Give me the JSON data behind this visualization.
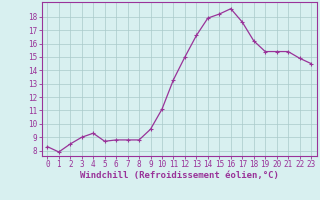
{
  "x": [
    0,
    1,
    2,
    3,
    4,
    5,
    6,
    7,
    8,
    9,
    10,
    11,
    12,
    13,
    14,
    15,
    16,
    17,
    18,
    19,
    20,
    21,
    22,
    23
  ],
  "y": [
    8.3,
    7.9,
    8.5,
    9.0,
    9.3,
    8.7,
    8.8,
    8.8,
    8.8,
    9.6,
    11.1,
    13.3,
    15.0,
    16.6,
    17.9,
    18.2,
    18.6,
    17.6,
    16.2,
    15.4,
    15.4,
    15.4,
    14.9,
    14.5
  ],
  "line_color": "#993399",
  "marker": "+",
  "marker_size": 3,
  "bg_color": "#d8f0f0",
  "grid_color": "#aacaca",
  "xlabel": "Windchill (Refroidissement éolien,°C)",
  "xlabel_color": "#993399",
  "xlabel_fontsize": 6.5,
  "ylabel_ticks": [
    8,
    9,
    10,
    11,
    12,
    13,
    14,
    15,
    16,
    17,
    18
  ],
  "ylim": [
    7.6,
    19.1
  ],
  "xlim": [
    -0.5,
    23.5
  ],
  "tick_fontsize": 5.5,
  "tick_color": "#993399",
  "spine_color": "#993399",
  "line_width": 0.9
}
